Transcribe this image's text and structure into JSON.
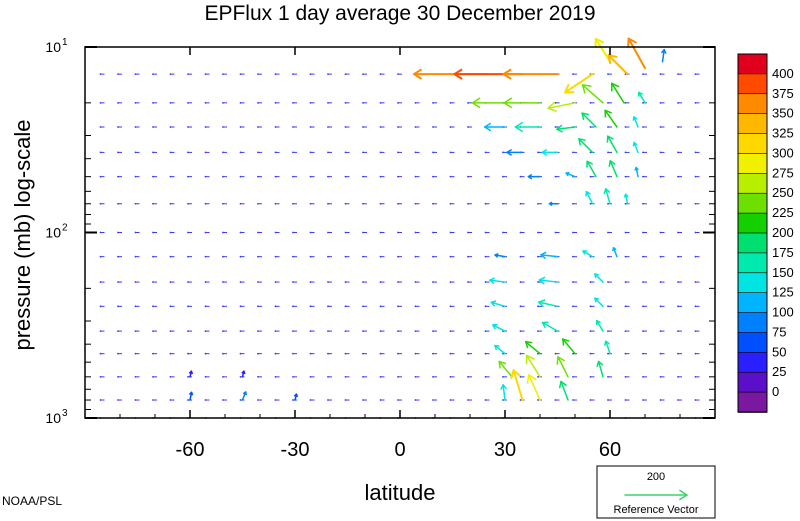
{
  "chart_data": {
    "type": "vector-field",
    "title": "EPFlux  1 day average  30 December  2019",
    "xlabel": "latitude",
    "ylabel": "pressure (mb)  log-scale",
    "x_ticks": [
      -60,
      -30,
      0,
      30,
      60
    ],
    "x_tick_labels": [
      "-60",
      "-30",
      "0",
      "30",
      "60"
    ],
    "xlim": [
      -90,
      90
    ],
    "ylim": [
      1000,
      10
    ],
    "y_scale": "log",
    "y_ticks": [
      {
        "value": 10,
        "base": "10",
        "exp": "1"
      },
      {
        "value": 100,
        "base": "10",
        "exp": "2"
      },
      {
        "value": 1000,
        "base": "10",
        "exp": "3"
      }
    ],
    "colorbar": {
      "labels": [
        "400",
        "375",
        "350",
        "325",
        "300",
        "275",
        "250",
        "225",
        "200",
        "175",
        "150",
        "125",
        "100",
        "75",
        "50",
        "25",
        "0"
      ],
      "colors": [
        "#e0001e",
        "#ff4a00",
        "#ff8a00",
        "#ffb800",
        "#ffd800",
        "#f0f000",
        "#b8ee00",
        "#6ce000",
        "#14d000",
        "#00e070",
        "#00eab0",
        "#00e4e4",
        "#00b4ff",
        "#0080ff",
        "#0050ff",
        "#2a20ff",
        "#5a10c8",
        "#7a18a0"
      ]
    },
    "reference_vector": {
      "value": "200",
      "label": "Reference Vector",
      "color": "#3cd36b"
    },
    "credit": "NOAA/PSL",
    "pressure_levels": [
      14,
      20,
      27,
      37,
      50,
      70,
      100,
      135,
      185,
      250,
      340,
      450,
      600,
      800,
      1000
    ],
    "vectors": [
      {
        "lat": 25,
        "p": 14,
        "dx": -2.2,
        "dy": 0,
        "mag": 390
      },
      {
        "lat": 35,
        "p": 14,
        "dx": -2.0,
        "dy": 0,
        "mag": 400
      },
      {
        "lat": 45,
        "p": 14,
        "dx": -1.6,
        "dy": 0,
        "mag": 395
      },
      {
        "lat": 55,
        "p": 14,
        "dx": -0.9,
        "dy": 0.6,
        "mag": 340
      },
      {
        "lat": 60,
        "p": 12,
        "dx": -0.5,
        "dy": -0.8,
        "mag": 310
      },
      {
        "lat": 65,
        "p": 14,
        "dx": -0.6,
        "dy": -0.6,
        "mag": 360
      },
      {
        "lat": 70,
        "p": 13,
        "dx": -0.5,
        "dy": -0.9,
        "mag": 380
      },
      {
        "lat": 75,
        "p": 12,
        "dx": 0.1,
        "dy": -0.7,
        "mag": 120
      },
      {
        "lat": 30,
        "p": 20,
        "dx": -1.3,
        "dy": 0,
        "mag": 250
      },
      {
        "lat": 40,
        "p": 20,
        "dx": -1.4,
        "dy": 0,
        "mag": 260
      },
      {
        "lat": 50,
        "p": 20,
        "dx": -1.0,
        "dy": 0.2,
        "mag": 280
      },
      {
        "lat": 58,
        "p": 20,
        "dx": -0.8,
        "dy": -0.7,
        "mag": 260
      },
      {
        "lat": 64,
        "p": 20,
        "dx": -0.5,
        "dy": -0.8,
        "mag": 240
      },
      {
        "lat": 70,
        "p": 20,
        "dx": -0.3,
        "dy": -0.5,
        "mag": 180
      },
      {
        "lat": 30,
        "p": 27,
        "dx": -1.1,
        "dy": 0,
        "mag": 140
      },
      {
        "lat": 40,
        "p": 27,
        "dx": -1.2,
        "dy": 0,
        "mag": 175
      },
      {
        "lat": 50,
        "p": 27,
        "dx": -0.8,
        "dy": 0.1,
        "mag": 210
      },
      {
        "lat": 56,
        "p": 27,
        "dx": -0.6,
        "dy": -0.6,
        "mag": 220
      },
      {
        "lat": 62,
        "p": 27,
        "dx": -0.5,
        "dy": -0.7,
        "mag": 230
      },
      {
        "lat": 68,
        "p": 27,
        "dx": -0.2,
        "dy": -0.5,
        "mag": 170
      },
      {
        "lat": 35,
        "p": 37,
        "dx": -0.9,
        "dy": 0,
        "mag": 120
      },
      {
        "lat": 45,
        "p": 37,
        "dx": -0.8,
        "dy": 0,
        "mag": 150
      },
      {
        "lat": 55,
        "p": 37,
        "dx": -0.6,
        "dy": -0.6,
        "mag": 210
      },
      {
        "lat": 62,
        "p": 37,
        "dx": -0.4,
        "dy": -0.7,
        "mag": 220
      },
      {
        "lat": 68,
        "p": 37,
        "dx": -0.2,
        "dy": -0.5,
        "mag": 160
      },
      {
        "lat": 40,
        "p": 50,
        "dx": -0.7,
        "dy": 0,
        "mag": 110
      },
      {
        "lat": 50,
        "p": 50,
        "dx": -0.5,
        "dy": -0.2,
        "mag": 130
      },
      {
        "lat": 56,
        "p": 50,
        "dx": -0.4,
        "dy": -0.7,
        "mag": 200
      },
      {
        "lat": 62,
        "p": 50,
        "dx": -0.3,
        "dy": -0.7,
        "mag": 210
      },
      {
        "lat": 68,
        "p": 50,
        "dx": -0.1,
        "dy": -0.5,
        "mag": 140
      },
      {
        "lat": 45,
        "p": 70,
        "dx": -0.5,
        "dy": 0,
        "mag": 100
      },
      {
        "lat": 55,
        "p": 70,
        "dx": -0.3,
        "dy": -0.6,
        "mag": 170
      },
      {
        "lat": 60,
        "p": 70,
        "dx": -0.2,
        "dy": -0.7,
        "mag": 190
      },
      {
        "lat": 65,
        "p": 70,
        "dx": -0.1,
        "dy": -0.5,
        "mag": 150
      },
      {
        "lat": 30,
        "p": 135,
        "dx": -0.6,
        "dy": -0.1,
        "mag": 110
      },
      {
        "lat": 45,
        "p": 135,
        "dx": -0.9,
        "dy": -0.1,
        "mag": 140
      },
      {
        "lat": 55,
        "p": 135,
        "dx": -0.5,
        "dy": -0.3,
        "mag": 150
      },
      {
        "lat": 62,
        "p": 135,
        "dx": -0.2,
        "dy": -0.5,
        "mag": 130
      },
      {
        "lat": 30,
        "p": 185,
        "dx": -0.8,
        "dy": -0.1,
        "mag": 150
      },
      {
        "lat": 45,
        "p": 185,
        "dx": -0.9,
        "dy": -0.1,
        "mag": 170
      },
      {
        "lat": 58,
        "p": 185,
        "dx": -0.4,
        "dy": -0.4,
        "mag": 170
      },
      {
        "lat": 30,
        "p": 250,
        "dx": -0.7,
        "dy": -0.2,
        "mag": 160
      },
      {
        "lat": 45,
        "p": 250,
        "dx": -0.9,
        "dy": -0.2,
        "mag": 180
      },
      {
        "lat": 58,
        "p": 250,
        "dx": -0.4,
        "dy": -0.4,
        "mag": 170
      },
      {
        "lat": 30,
        "p": 340,
        "dx": -0.6,
        "dy": -0.3,
        "mag": 170
      },
      {
        "lat": 45,
        "p": 340,
        "dx": -0.7,
        "dy": -0.4,
        "mag": 190
      },
      {
        "lat": 58,
        "p": 340,
        "dx": -0.3,
        "dy": -0.5,
        "mag": 180
      },
      {
        "lat": 30,
        "p": 450,
        "dx": -0.5,
        "dy": -0.4,
        "mag": 170
      },
      {
        "lat": 40,
        "p": 450,
        "dx": -0.6,
        "dy": -0.5,
        "mag": 230
      },
      {
        "lat": 50,
        "p": 450,
        "dx": -0.5,
        "dy": -0.6,
        "mag": 240
      },
      {
        "lat": 60,
        "p": 450,
        "dx": -0.2,
        "dy": -0.6,
        "mag": 180
      },
      {
        "lat": 32,
        "p": 600,
        "dx": -0.5,
        "dy": -0.6,
        "mag": 260
      },
      {
        "lat": 40,
        "p": 600,
        "dx": -0.5,
        "dy": -0.8,
        "mag": 280
      },
      {
        "lat": 48,
        "p": 600,
        "dx": -0.4,
        "dy": -0.8,
        "mag": 250
      },
      {
        "lat": 58,
        "p": 600,
        "dx": -0.2,
        "dy": -0.7,
        "mag": 200
      },
      {
        "lat": 30,
        "p": 800,
        "dx": -0.1,
        "dy": -0.8,
        "mag": 150
      },
      {
        "lat": 35,
        "p": 800,
        "dx": -0.3,
        "dy": -1.0,
        "mag": 330
      },
      {
        "lat": 40,
        "p": 800,
        "dx": -0.4,
        "dy": -0.9,
        "mag": 300
      },
      {
        "lat": 48,
        "p": 800,
        "dx": -0.3,
        "dy": -0.8,
        "mag": 220
      },
      {
        "lat": -60,
        "p": 800,
        "dx": 0.1,
        "dy": -0.5,
        "mag": 90
      },
      {
        "lat": -45,
        "p": 800,
        "dx": 0.2,
        "dy": -0.5,
        "mag": 100
      },
      {
        "lat": -30,
        "p": 800,
        "dx": 0.1,
        "dy": -0.4,
        "mag": 80
      },
      {
        "lat": -60,
        "p": 600,
        "dx": 0.1,
        "dy": -0.4,
        "mag": 70
      },
      {
        "lat": -45,
        "p": 600,
        "dx": 0.1,
        "dy": -0.4,
        "mag": 70
      }
    ]
  }
}
